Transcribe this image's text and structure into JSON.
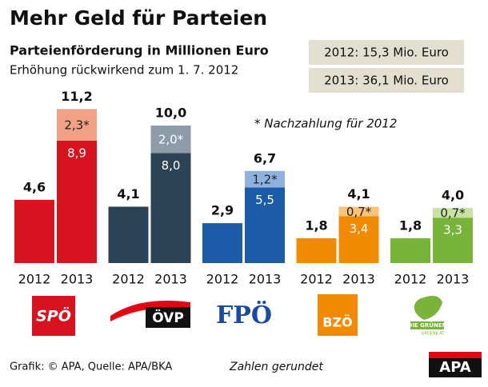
{
  "chart_data": {
    "type": "bar",
    "title": "Mehr Geld für Parteien",
    "subtitle": "Parteienförderung in Millionen Euro",
    "note": "Erhöhung rückwirkend zum 1. 7. 2012",
    "summary": [
      "2012: 15,3 Mio. Euro",
      "2013: 36,1 Mio. Euro"
    ],
    "annotation": "* Nachzahlung für 2012",
    "categories": [
      "SPÖ",
      "ÖVP",
      "FPÖ",
      "BZÖ",
      "DIE GRÜNEN"
    ],
    "logo_subtext": "GRUENE.AT",
    "year_labels": [
      "2012",
      "2013"
    ],
    "colors": [
      {
        "dark": "#d6131f",
        "light": "#f2a185",
        "light_label": "#222222"
      },
      {
        "dark": "#2c4356",
        "light": "#8c9cab",
        "light_label": "#ffffff"
      },
      {
        "dark": "#1b5ba8",
        "light": "#8fb1de",
        "light_label": "#222222"
      },
      {
        "dark": "#f08a00",
        "light": "#f9c27b",
        "light_label": "#222222"
      },
      {
        "dark": "#78b43a",
        "light": "#c7e2a2",
        "light_label": "#222222"
      }
    ],
    "series": [
      {
        "values": [
          4.6,
          4.1,
          2.9,
          1.8,
          1.8
        ],
        "value_labels": [
          "4,6",
          "4,1",
          "2,9",
          "1,8",
          "1,8"
        ]
      },
      {
        "values": [
          8.9,
          8.0,
          5.5,
          3.4,
          3.3
        ],
        "value_labels": [
          "8,9",
          "8,0",
          "5,5",
          "3,4",
          "3,3"
        ]
      },
      {
        "values": [
          2.3,
          2.0,
          1.2,
          0.7,
          0.7
        ],
        "value_labels": [
          "2,3*",
          "2,0*",
          "1,2*",
          "0,7*",
          "0,7*"
        ]
      }
    ],
    "totals": {
      "values": [
        11.2,
        10.0,
        6.7,
        4.1,
        4.0
      ],
      "value_labels": [
        "11,2",
        "10,0",
        "6,7",
        "4,1",
        "4,0"
      ]
    },
    "ylim": [
      0,
      15
    ],
    "source": "Grafik: © APA, Quelle: APA/BKA",
    "footnote": "Zahlen gerundet",
    "brand": "APA"
  }
}
